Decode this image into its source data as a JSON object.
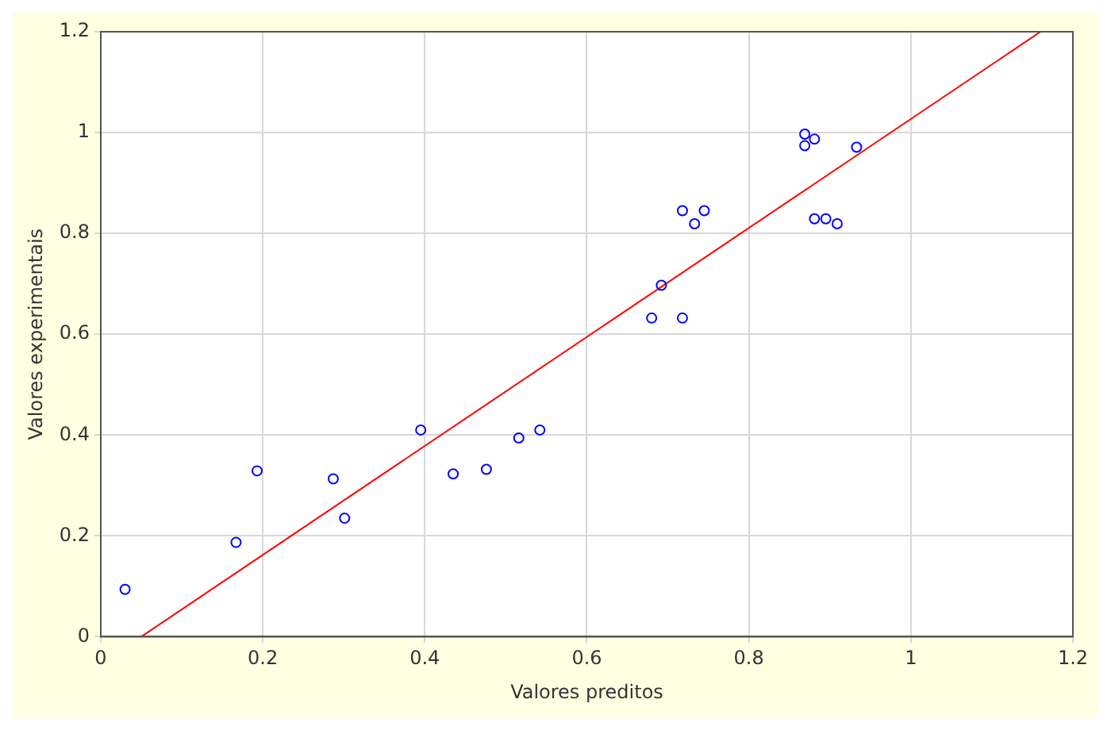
{
  "chart_data": {
    "type": "scatter",
    "xlabel": "Valores preditos",
    "ylabel": "Valores experimentais",
    "xlim": [
      0,
      1.2
    ],
    "ylim": [
      0,
      1.2
    ],
    "xticks": [
      0,
      0.2,
      0.4,
      0.6,
      0.8,
      1,
      1.2
    ],
    "yticks": [
      0,
      0.2,
      0.4,
      0.6,
      0.8,
      1,
      1.2
    ],
    "grid": true,
    "legend": false,
    "marker": "circle",
    "series": [
      {
        "color": "#0000ff",
        "x": [
          0.03,
          0.167,
          0.193,
          0.287,
          0.301,
          0.395,
          0.435,
          0.476,
          0.516,
          0.542,
          0.68,
          0.692,
          0.718,
          0.718,
          0.733,
          0.745,
          0.869,
          0.869,
          0.881,
          0.881,
          0.895,
          0.909,
          0.933
        ],
        "values": [
          0.094,
          0.187,
          0.329,
          0.313,
          0.235,
          0.41,
          0.323,
          0.332,
          0.394,
          0.41,
          0.632,
          0.697,
          0.632,
          0.845,
          0.819,
          0.845,
          0.997,
          0.974,
          0.987,
          0.829,
          0.829,
          0.819,
          0.971
        ]
      },
      {
        "type": "line",
        "color": "#ff0000",
        "x": [
          0.05,
          1.16
        ],
        "values": [
          0,
          1.2
        ],
        "marker": "none"
      }
    ]
  }
}
